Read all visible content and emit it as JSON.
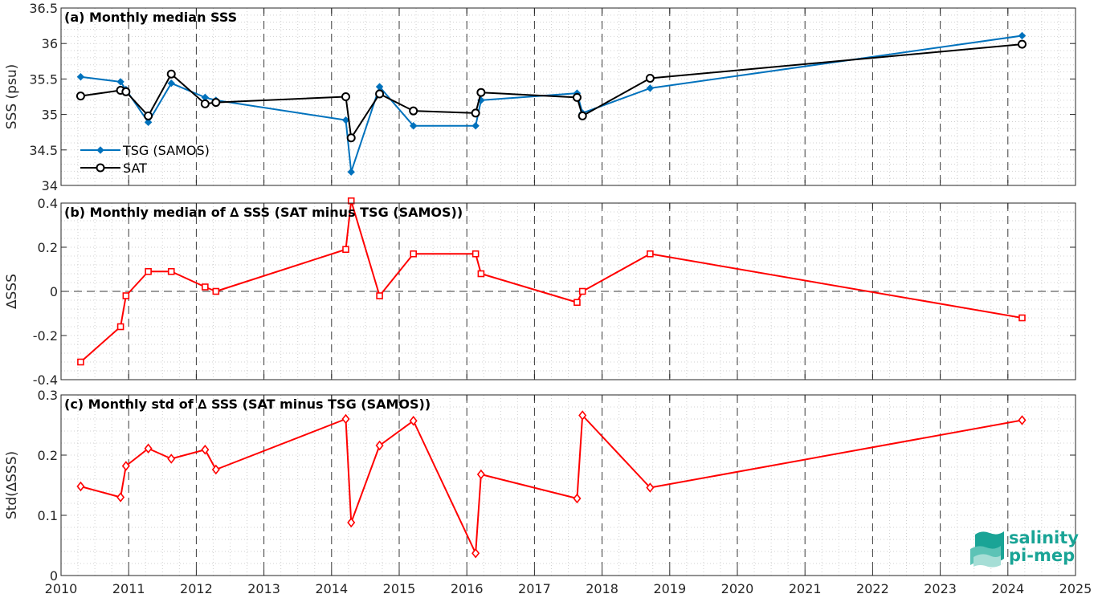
{
  "chart_data": [
    {
      "type": "line",
      "title": "(a) Monthly median SSS",
      "xlabel": "",
      "ylabel": "SSS (psu)",
      "xlim": [
        2010,
        2025
      ],
      "ylim": [
        34,
        36.5
      ],
      "yticks": [
        "34",
        "34.5",
        "35",
        "35.5",
        "36",
        "36.5"
      ],
      "ytick_values": [
        34,
        34.5,
        35,
        35.5,
        36,
        36.5
      ],
      "legend_position": "left",
      "grid": "dotted minor grid, dashed yearly vertical lines",
      "series": [
        {
          "name": "TSG (SAMOS)",
          "color": "#0072BD",
          "marker": "filled-diamond",
          "x": [
            2010.29,
            2010.88,
            2010.96,
            2011.29,
            2011.63,
            2012.13,
            2012.29,
            2014.21,
            2014.29,
            2014.71,
            2015.21,
            2016.13,
            2016.21,
            2017.63,
            2017.71,
            2018.71,
            2024.21
          ],
          "y": [
            35.53,
            35.46,
            35.35,
            34.89,
            35.44,
            35.24,
            35.2,
            34.92,
            34.19,
            35.39,
            34.84,
            34.84,
            35.2,
            35.3,
            35.02,
            35.37,
            36.11
          ]
        },
        {
          "name": "SAT",
          "color": "#000000",
          "marker": "open-circle",
          "x": [
            2010.29,
            2010.88,
            2010.96,
            2011.29,
            2011.63,
            2012.13,
            2012.29,
            2014.21,
            2014.29,
            2014.71,
            2015.21,
            2016.13,
            2016.21,
            2017.63,
            2017.71,
            2018.71,
            2024.21
          ],
          "y": [
            35.26,
            35.34,
            35.32,
            34.98,
            35.57,
            35.15,
            35.17,
            35.25,
            34.67,
            35.29,
            35.05,
            35.02,
            35.31,
            35.24,
            34.98,
            35.51,
            35.99
          ]
        }
      ]
    },
    {
      "type": "line",
      "title": "(b) Monthly median of ∆ SSS (SAT minus TSG (SAMOS))",
      "xlabel": "",
      "ylabel": "∆SSS",
      "xlim": [
        2010,
        2025
      ],
      "ylim": [
        -0.4,
        0.4
      ],
      "yticks": [
        "-0.4",
        "-0.2",
        "0",
        "0.2",
        "0.4"
      ],
      "ytick_values": [
        -0.4,
        -0.2,
        0,
        0.2,
        0.4
      ],
      "zero_line": "dashed",
      "series": [
        {
          "color": "#FF0000",
          "marker": "open-square",
          "x": [
            2010.29,
            2010.88,
            2010.96,
            2011.29,
            2011.63,
            2012.13,
            2012.29,
            2014.21,
            2014.29,
            2014.71,
            2015.21,
            2016.13,
            2016.21,
            2017.63,
            2017.71,
            2018.71,
            2024.21
          ],
          "y": [
            -0.32,
            -0.16,
            -0.02,
            0.09,
            0.09,
            0.02,
            0.0,
            0.19,
            0.41,
            -0.02,
            0.17,
            0.17,
            0.08,
            -0.05,
            0.0,
            0.17,
            -0.12
          ]
        }
      ]
    },
    {
      "type": "line",
      "title": "(c) Monthly std of ∆ SSS (SAT minus TSG (SAMOS))",
      "xlabel": "",
      "ylabel": "Std(∆SSS)",
      "xlim": [
        2010,
        2025
      ],
      "ylim": [
        0,
        0.3
      ],
      "yticks": [
        "0",
        "0.1",
        "0.2",
        "0.3"
      ],
      "ytick_values": [
        0,
        0.1,
        0.2,
        0.3
      ],
      "xticks": [
        "2010",
        "2011",
        "2012",
        "2013",
        "2014",
        "2015",
        "2016",
        "2017",
        "2018",
        "2019",
        "2020",
        "2021",
        "2022",
        "2023",
        "2024",
        "2025"
      ],
      "series": [
        {
          "color": "#FF0000",
          "marker": "open-diamond",
          "x": [
            2010.29,
            2010.88,
            2010.96,
            2011.29,
            2011.63,
            2012.13,
            2012.29,
            2014.21,
            2014.29,
            2014.71,
            2015.21,
            2016.13,
            2016.21,
            2017.63,
            2017.71,
            2018.71,
            2024.21
          ],
          "y": [
            0.148,
            0.13,
            0.182,
            0.211,
            0.194,
            0.209,
            0.176,
            0.26,
            0.088,
            0.216,
            0.257,
            0.037,
            0.168,
            0.128,
            0.266,
            0.146,
            0.258
          ]
        }
      ]
    }
  ],
  "logo": {
    "line1": "salinity",
    "line2": "pi-mep",
    "color": "#1aa496",
    "icon": "wave-stack-icon"
  }
}
